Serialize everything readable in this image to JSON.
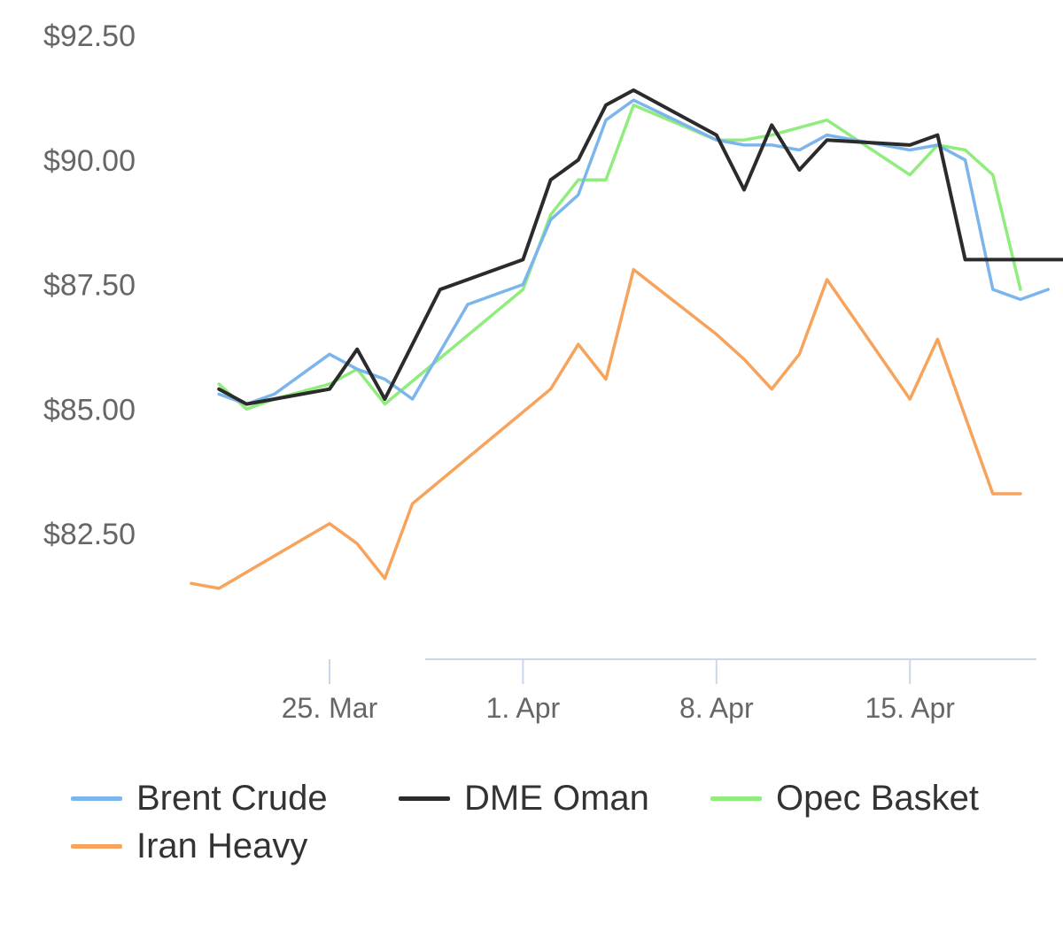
{
  "chart_data": {
    "type": "line",
    "ylim": [
      80.5,
      93
    ],
    "yticks": [
      82.5,
      85,
      87.5,
      90,
      92.5
    ],
    "ytick_labels": [
      "$82.50",
      "$85.00",
      "$87.50",
      "$90.00",
      "$92.50"
    ],
    "xlim": [
      "2024-03-20",
      "2024-04-21"
    ],
    "xticks": [
      "2024-03-25",
      "2024-04-01",
      "2024-04-08",
      "2024-04-15"
    ],
    "xtick_labels": [
      "25. Mar",
      "1. Apr",
      "8. Apr",
      "15. Apr"
    ],
    "legend_position": "bottom",
    "grid": false,
    "series": [
      {
        "name": "Brent Crude",
        "color": "#7cb5ec",
        "points": [
          [
            "2024-03-21",
            85.3
          ],
          [
            "2024-03-22",
            85.1
          ],
          [
            "2024-03-23",
            85.3
          ],
          [
            "2024-03-25",
            86.1
          ],
          [
            "2024-03-26",
            85.8
          ],
          [
            "2024-03-27",
            85.6
          ],
          [
            "2024-03-28",
            85.2
          ],
          [
            "2024-03-30",
            87.1
          ],
          [
            "2024-04-01",
            87.5
          ],
          [
            "2024-04-02",
            88.8
          ],
          [
            "2024-04-03",
            89.3
          ],
          [
            "2024-04-04",
            90.8
          ],
          [
            "2024-04-05",
            91.2
          ],
          [
            "2024-04-08",
            90.4
          ],
          [
            "2024-04-09",
            90.3
          ],
          [
            "2024-04-10",
            90.3
          ],
          [
            "2024-04-11",
            90.2
          ],
          [
            "2024-04-12",
            90.5
          ],
          [
            "2024-04-15",
            90.2
          ],
          [
            "2024-04-16",
            90.3
          ],
          [
            "2024-04-17",
            90.0
          ],
          [
            "2024-04-18",
            87.4
          ],
          [
            "2024-04-19",
            87.2
          ],
          [
            "2024-04-20",
            87.4
          ]
        ]
      },
      {
        "name": "DME Oman",
        "color": "#2b2b2b",
        "points": [
          [
            "2024-03-21",
            85.4
          ],
          [
            "2024-03-22",
            85.1
          ],
          [
            "2024-03-23",
            85.2
          ],
          [
            "2024-03-25",
            85.4
          ],
          [
            "2024-03-26",
            86.2
          ],
          [
            "2024-03-27",
            85.2
          ],
          [
            "2024-03-29",
            87.4
          ],
          [
            "2024-04-01",
            88.0
          ],
          [
            "2024-04-02",
            89.6
          ],
          [
            "2024-04-03",
            90.0
          ],
          [
            "2024-04-04",
            91.1
          ],
          [
            "2024-04-05",
            91.4
          ],
          [
            "2024-04-08",
            90.5
          ],
          [
            "2024-04-09",
            89.4
          ],
          [
            "2024-04-10",
            90.7
          ],
          [
            "2024-04-11",
            89.8
          ],
          [
            "2024-04-12",
            90.4
          ],
          [
            "2024-04-15",
            90.3
          ],
          [
            "2024-04-16",
            90.5
          ],
          [
            "2024-04-17",
            88.0
          ],
          [
            "2024-04-20",
            88.0
          ],
          [
            "2024-04-21",
            88.0
          ]
        ]
      },
      {
        "name": "Opec Basket",
        "color": "#90ed7d",
        "points": [
          [
            "2024-03-21",
            85.5
          ],
          [
            "2024-03-22",
            85.0
          ],
          [
            "2024-03-23",
            85.2
          ],
          [
            "2024-03-25",
            85.5
          ],
          [
            "2024-03-26",
            85.8
          ],
          [
            "2024-03-27",
            85.1
          ],
          [
            "2024-04-01",
            87.4
          ],
          [
            "2024-04-02",
            88.9
          ],
          [
            "2024-04-03",
            89.6
          ],
          [
            "2024-04-04",
            89.6
          ],
          [
            "2024-04-05",
            91.1
          ],
          [
            "2024-04-08",
            90.4
          ],
          [
            "2024-04-09",
            90.4
          ],
          [
            "2024-04-10",
            90.5
          ],
          [
            "2024-04-12",
            90.8
          ],
          [
            "2024-04-15",
            89.7
          ],
          [
            "2024-04-16",
            90.3
          ],
          [
            "2024-04-17",
            90.2
          ],
          [
            "2024-04-18",
            89.7
          ],
          [
            "2024-04-19",
            87.4
          ]
        ]
      },
      {
        "name": "Iran Heavy",
        "color": "#f7a35c",
        "points": [
          [
            "2024-03-20",
            81.5
          ],
          [
            "2024-03-21",
            81.4
          ],
          [
            "2024-03-25",
            82.7
          ],
          [
            "2024-03-26",
            82.3
          ],
          [
            "2024-03-27",
            81.6
          ],
          [
            "2024-03-28",
            83.1
          ],
          [
            "2024-04-02",
            85.4
          ],
          [
            "2024-04-03",
            86.3
          ],
          [
            "2024-04-04",
            85.6
          ],
          [
            "2024-04-05",
            87.8
          ],
          [
            "2024-04-08",
            86.5
          ],
          [
            "2024-04-09",
            86.0
          ],
          [
            "2024-04-10",
            85.4
          ],
          [
            "2024-04-11",
            86.1
          ],
          [
            "2024-04-12",
            87.6
          ],
          [
            "2024-04-15",
            85.2
          ],
          [
            "2024-04-16",
            86.4
          ],
          [
            "2024-04-18",
            83.3
          ],
          [
            "2024-04-19",
            83.3
          ]
        ]
      }
    ]
  }
}
